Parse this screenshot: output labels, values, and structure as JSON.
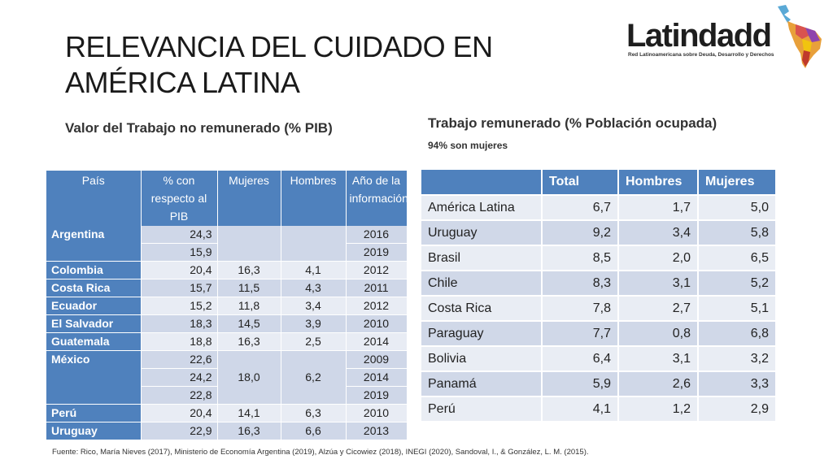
{
  "title_line1": "RELEVANCIA DEL CUIDADO EN",
  "title_line2": "AMÉRICA LATINA",
  "subtitle_left": "Valor del Trabajo no remunerado (% PIB)",
  "subtitle_right": "Trabajo remunerado (% Población ocupada)",
  "note_right": "94% son mujeres",
  "logo": {
    "name": "Latindadd",
    "tagline": "Red Latinoamericana sobre Deuda, Desarrollo y Derechos",
    "icon": "latin-america-map-icon"
  },
  "table_left": {
    "headers": [
      "País",
      "% con respecto al PIB",
      "Mujeres",
      "Hombres",
      "Año de la información"
    ],
    "rows": [
      {
        "country": "Argentina",
        "pct": "24,3",
        "mujeres": "",
        "hombres": "",
        "anio": "2016"
      },
      {
        "country": "",
        "pct": "15,9",
        "mujeres": "",
        "hombres": "",
        "anio": "2019"
      },
      {
        "country": "Colombia",
        "pct": "20,4",
        "mujeres": "16,3",
        "hombres": "4,1",
        "anio": "2012"
      },
      {
        "country": "Costa Rica",
        "pct": "15,7",
        "mujeres": "11,5",
        "hombres": "4,3",
        "anio": "2011"
      },
      {
        "country": "Ecuador",
        "pct": "15,2",
        "mujeres": "11,8",
        "hombres": "3,4",
        "anio": "2012"
      },
      {
        "country": "El Salvador",
        "pct": "18,3",
        "mujeres": "14,5",
        "hombres": "3,9",
        "anio": "2010"
      },
      {
        "country": "Guatemala",
        "pct": "18,8",
        "mujeres": "16,3",
        "hombres": "2,5",
        "anio": "2014"
      },
      {
        "country": "México",
        "pct": "22,6",
        "mujeres": "",
        "hombres": "",
        "anio": "2009"
      },
      {
        "country": "",
        "pct": "24,2",
        "mujeres": "18,0",
        "hombres": "6,2",
        "anio": "2014"
      },
      {
        "country": "",
        "pct": "22,8",
        "mujeres": "",
        "hombres": "",
        "anio": "2019"
      },
      {
        "country": "Perú",
        "pct": "20,4",
        "mujeres": "14,1",
        "hombres": "6,3",
        "anio": "2010"
      },
      {
        "country": "Uruguay",
        "pct": "22,9",
        "mujeres": "16,3",
        "hombres": "6,6",
        "anio": "2013"
      }
    ]
  },
  "table_right": {
    "headers": [
      "",
      "Total",
      "Hombres",
      "Mujeres"
    ],
    "rows": [
      {
        "region": "América Latina",
        "total": "6,7",
        "hombres": "1,7",
        "mujeres": "5,0"
      },
      {
        "region": "Uruguay",
        "total": "9,2",
        "hombres": "3,4",
        "mujeres": "5,8"
      },
      {
        "region": "Brasil",
        "total": "8,5",
        "hombres": "2,0",
        "mujeres": "6,5"
      },
      {
        "region": "Chile",
        "total": "8,3",
        "hombres": "3,1",
        "mujeres": "5,2"
      },
      {
        "region": "Costa Rica",
        "total": "7,8",
        "hombres": "2,7",
        "mujeres": "5,1"
      },
      {
        "region": "Paraguay",
        "total": "7,7",
        "hombres": "0,8",
        "mujeres": "6,8"
      },
      {
        "region": "Bolivia",
        "total": "6,4",
        "hombres": "3,1",
        "mujeres": "3,2"
      },
      {
        "region": "Panamá",
        "total": "5,9",
        "hombres": "2,6",
        "mujeres": "3,3"
      },
      {
        "region": "Perú",
        "total": "4,1",
        "hombres": "1,2",
        "mujeres": "2,9"
      }
    ]
  },
  "source": "Fuente: Rico, María Nieves (2017), Ministerio de Economía Argentina (2019), Alzúa y Cicowiez (2018), INEGI (2020), Sandoval, I., & González, L. M. (2015).",
  "colors": {
    "header_blue": "#4f81bd",
    "band_dark": "#d0d8e8",
    "band_light": "#e9edf4"
  }
}
